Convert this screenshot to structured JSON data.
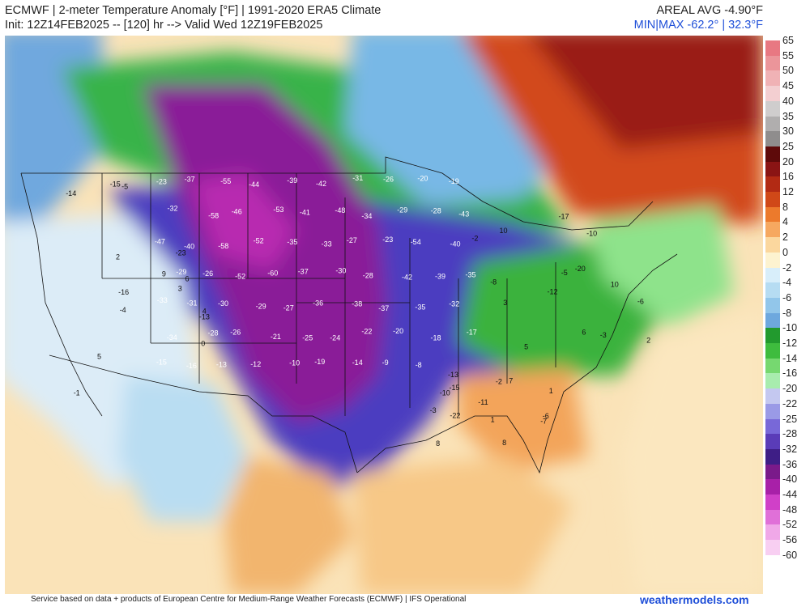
{
  "header": {
    "title_line": "ECMWF | 2-meter Temperature Anomaly [°F] | 1991-2020 ERA5 Climate",
    "init_line": "Init: 12Z14FEB2025 -- [120] hr --> Valid Wed 12Z19FEB2025",
    "areal_avg": "AREAL AVG -4.90°F",
    "min_max": "MIN|MAX -62.2° | 32.3°F"
  },
  "scale": {
    "ticks": [
      "65",
      "55",
      "50",
      "45",
      "40",
      "35",
      "30",
      "25",
      "20",
      "16",
      "12",
      "8",
      "4",
      "2",
      "0",
      "-2",
      "-4",
      "-6",
      "-8",
      "-10",
      "-12",
      "-14",
      "-16",
      "-20",
      "-22",
      "-25",
      "-28",
      "-32",
      "-36",
      "-40",
      "-44",
      "-48",
      "-52",
      "-56",
      "-60"
    ],
    "colors": [
      "#e87882",
      "#eb959a",
      "#f0b2b5",
      "#f3cfd1",
      "#cfcdcd",
      "#b0aeae",
      "#8f8d8d",
      "#5e0a0a",
      "#8a1414",
      "#b22a14",
      "#d04818",
      "#ec7a2c",
      "#f6a860",
      "#fbd79e",
      "#fdf3d0",
      "#d8eefa",
      "#b6dcf2",
      "#92c6ea",
      "#6ea8de",
      "#229a2e",
      "#3ebc3e",
      "#76d870",
      "#a8ecae",
      "#c4c8f0",
      "#9a9ae6",
      "#7868d8",
      "#5a3cb8",
      "#3e1e86",
      "#7a1a8a",
      "#a820a8",
      "#d040c8",
      "#e070d8",
      "#f0a8e8",
      "#f8cff2"
    ],
    "colors_note": "bands between consecutive ticks, top to bottom"
  },
  "map_labels": [
    {
      "t": "-23",
      "g": "cold"
    },
    {
      "t": "-37",
      "g": "cold"
    },
    {
      "t": "-55",
      "g": "cold"
    },
    {
      "t": "-44",
      "g": "cold"
    },
    {
      "t": "-39",
      "g": "cold"
    },
    {
      "t": "-42",
      "g": "cold"
    },
    {
      "t": "-31",
      "g": "cold"
    },
    {
      "t": "-26",
      "g": "cold"
    },
    {
      "t": "-20",
      "g": "cold"
    },
    {
      "t": "-19",
      "g": "cold"
    },
    {
      "t": "-32",
      "g": "cold"
    },
    {
      "t": "-58",
      "g": "cold"
    },
    {
      "t": "-46",
      "g": "cold"
    },
    {
      "t": "-53",
      "g": "cold"
    },
    {
      "t": "-41",
      "g": "cold"
    },
    {
      "t": "-48",
      "g": "cold"
    },
    {
      "t": "-34",
      "g": "cold"
    },
    {
      "t": "-29",
      "g": "cold"
    },
    {
      "t": "-28",
      "g": "cold"
    },
    {
      "t": "-43",
      "g": "cold"
    },
    {
      "t": "-47",
      "g": "cold"
    },
    {
      "t": "-40",
      "g": "cold"
    },
    {
      "t": "-58",
      "g": "cold"
    },
    {
      "t": "-52",
      "g": "cold"
    },
    {
      "t": "-35",
      "g": "cold"
    },
    {
      "t": "-33",
      "g": "cold"
    },
    {
      "t": "-27",
      "g": "cold"
    },
    {
      "t": "-23",
      "g": "cold"
    },
    {
      "t": "-54",
      "g": "cold"
    },
    {
      "t": "-40",
      "g": "cold"
    },
    {
      "t": "-29",
      "g": "cold"
    },
    {
      "t": "-26",
      "g": "cold"
    },
    {
      "t": "-52",
      "g": "cold"
    },
    {
      "t": "-60",
      "g": "cold"
    },
    {
      "t": "-37",
      "g": "cold"
    },
    {
      "t": "-30",
      "g": "cold"
    },
    {
      "t": "-28",
      "g": "cold"
    },
    {
      "t": "-42",
      "g": "cold"
    },
    {
      "t": "-39",
      "g": "cold"
    },
    {
      "t": "-35",
      "g": "cold"
    },
    {
      "t": "-33",
      "g": "cold"
    },
    {
      "t": "-31",
      "g": "cold"
    },
    {
      "t": "-30",
      "g": "cold"
    },
    {
      "t": "-29",
      "g": "cold"
    },
    {
      "t": "-27",
      "g": "cold"
    },
    {
      "t": "-36",
      "g": "cold"
    },
    {
      "t": "-38",
      "g": "cold"
    },
    {
      "t": "-37",
      "g": "cold"
    },
    {
      "t": "-35",
      "g": "cold"
    },
    {
      "t": "-32",
      "g": "cold"
    },
    {
      "t": "-34",
      "g": "cold"
    },
    {
      "t": "-28",
      "g": "cold"
    },
    {
      "t": "-26",
      "g": "cold"
    },
    {
      "t": "-21",
      "g": "cold"
    },
    {
      "t": "-25",
      "g": "cold"
    },
    {
      "t": "-24",
      "g": "cold"
    },
    {
      "t": "-22",
      "g": "cold"
    },
    {
      "t": "-20",
      "g": "cold"
    },
    {
      "t": "-18",
      "g": "cold"
    },
    {
      "t": "-17",
      "g": "cold"
    },
    {
      "t": "-15",
      "g": "cold"
    },
    {
      "t": "-16",
      "g": "cold"
    },
    {
      "t": "-13",
      "g": "cold"
    },
    {
      "t": "-12",
      "g": "cold"
    },
    {
      "t": "-10",
      "g": "cold"
    },
    {
      "t": "-19",
      "g": "cold"
    },
    {
      "t": "-14",
      "g": "cold"
    },
    {
      "t": "-9",
      "g": "cold"
    },
    {
      "t": "-8",
      "g": "cold"
    },
    {
      "t": "3",
      "g": "mild"
    },
    {
      "t": "5",
      "g": "mild"
    },
    {
      "t": "7",
      "g": "mild"
    },
    {
      "t": "-1",
      "g": "mild"
    },
    {
      "t": "-2",
      "g": "mild"
    },
    {
      "t": "-3",
      "g": "mild"
    },
    {
      "t": "-4",
      "g": "mild"
    },
    {
      "t": "-5",
      "g": "mild"
    },
    {
      "t": "-6",
      "g": "mild"
    },
    {
      "t": "0",
      "g": "mild"
    },
    {
      "t": "2",
      "g": "mild"
    },
    {
      "t": "1",
      "g": "mild"
    },
    {
      "t": "4",
      "g": "mild"
    },
    {
      "t": "6",
      "g": "mild"
    },
    {
      "t": "8",
      "g": "mild"
    },
    {
      "t": "9",
      "g": "mild"
    },
    {
      "t": "10",
      "g": "mild"
    },
    {
      "t": "-7",
      "g": "mild"
    },
    {
      "t": "-16",
      "g": "mild"
    },
    {
      "t": "-10",
      "g": "mild"
    },
    {
      "t": "-13",
      "g": "mild"
    },
    {
      "t": "-15",
      "g": "mild"
    },
    {
      "t": "-17",
      "g": "mild"
    },
    {
      "t": "-22",
      "g": "mild"
    },
    {
      "t": "-23",
      "g": "mild"
    },
    {
      "t": "-20",
      "g": "mild"
    },
    {
      "t": "-15",
      "g": "mild"
    },
    {
      "t": "-13",
      "g": "mild"
    },
    {
      "t": "-8",
      "g": "mild"
    },
    {
      "t": "-11",
      "g": "mild"
    },
    {
      "t": "-14",
      "g": "mild"
    },
    {
      "t": "-12",
      "g": "mild"
    },
    {
      "t": "-10",
      "g": "mild"
    },
    {
      "t": "-5",
      "g": "mild"
    },
    {
      "t": "-3",
      "g": "mild"
    },
    {
      "t": "-2",
      "g": "mild"
    },
    {
      "t": "5",
      "g": "mild"
    },
    {
      "t": "3",
      "g": "mild"
    },
    {
      "t": "1",
      "g": "mild"
    },
    {
      "t": "6",
      "g": "mild"
    },
    {
      "t": "10",
      "g": "mild"
    },
    {
      "t": "8",
      "g": "mild"
    },
    {
      "t": "2",
      "g": "mild"
    },
    {
      "t": "-6",
      "g": "mild"
    }
  ],
  "footer": {
    "service": "Service based on data + products of European Centre for Medium-Range Weather Forecasts (ECMWF) | IFS Operational",
    "brand": "weathermodels.com"
  }
}
